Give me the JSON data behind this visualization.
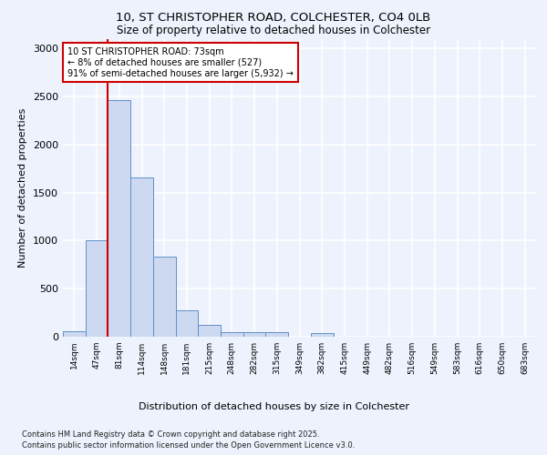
{
  "title_line1": "10, ST CHRISTOPHER ROAD, COLCHESTER, CO4 0LB",
  "title_line2": "Size of property relative to detached houses in Colchester",
  "xlabel": "Distribution of detached houses by size in Colchester",
  "ylabel": "Number of detached properties",
  "categories": [
    "14sqm",
    "47sqm",
    "81sqm",
    "114sqm",
    "148sqm",
    "181sqm",
    "215sqm",
    "248sqm",
    "282sqm",
    "315sqm",
    "349sqm",
    "382sqm",
    "415sqm",
    "449sqm",
    "482sqm",
    "516sqm",
    "549sqm",
    "583sqm",
    "616sqm",
    "650sqm",
    "683sqm"
  ],
  "values": [
    60,
    1005,
    2465,
    1660,
    830,
    270,
    120,
    50,
    50,
    45,
    0,
    35,
    0,
    0,
    0,
    0,
    0,
    0,
    0,
    0,
    0
  ],
  "bar_color": "#ccd9f0",
  "bar_edge_color": "#6090c8",
  "property_line_x": 1.5,
  "property_line_color": "#cc0000",
  "annotation_text": "10 ST CHRISTOPHER ROAD: 73sqm\n← 8% of detached houses are smaller (527)\n91% of semi-detached houses are larger (5,932) →",
  "annotation_box_color": "#cc0000",
  "ylim": [
    0,
    3100
  ],
  "yticks": [
    0,
    500,
    1000,
    1500,
    2000,
    2500,
    3000
  ],
  "background_color": "#eef2fc",
  "grid_color": "#ffffff",
  "footer_line1": "Contains HM Land Registry data © Crown copyright and database right 2025.",
  "footer_line2": "Contains public sector information licensed under the Open Government Licence v3.0."
}
